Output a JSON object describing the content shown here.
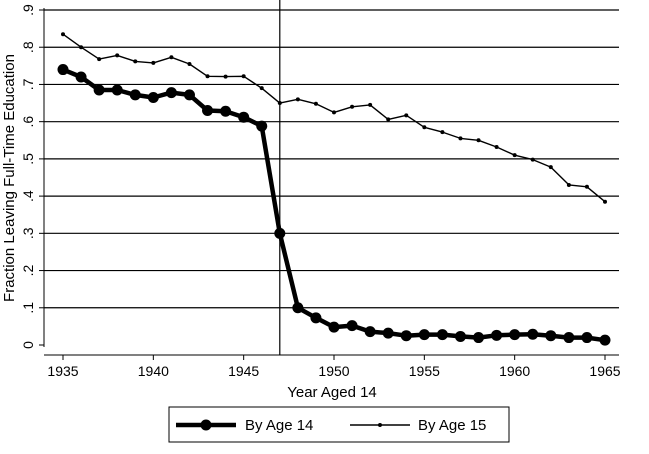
{
  "chart_data": {
    "type": "line",
    "title": "",
    "xlabel": "Year Aged 14",
    "ylabel": "Fraction Leaving Full-Time Education",
    "xlim": [
      1935,
      1965
    ],
    "ylim": [
      0,
      0.9
    ],
    "x_ticks": [
      1935,
      1940,
      1945,
      1950,
      1955,
      1960,
      1965
    ],
    "x_tick_labels": [
      "1935",
      "1940",
      "1945",
      "1950",
      "1955",
      "1960",
      "1965"
    ],
    "y_ticks": [
      0,
      0.1,
      0.2,
      0.3,
      0.4,
      0.5,
      0.6,
      0.7,
      0.8,
      0.9
    ],
    "y_tick_labels": [
      "0",
      ".1",
      ".2",
      ".3",
      ".4",
      ".5",
      ".6",
      ".7",
      ".8",
      ".9"
    ],
    "grid": "horizontal",
    "reference_line_x": 1947,
    "legend_position": "bottom",
    "x": [
      1935,
      1936,
      1937,
      1938,
      1939,
      1940,
      1941,
      1942,
      1943,
      1944,
      1945,
      1946,
      1947,
      1948,
      1949,
      1950,
      1951,
      1952,
      1953,
      1954,
      1955,
      1956,
      1957,
      1958,
      1959,
      1960,
      1961,
      1962,
      1963,
      1964,
      1965
    ],
    "series": [
      {
        "name": "By Age 14",
        "color": "#000000",
        "values": [
          0.74,
          0.72,
          0.685,
          0.685,
          0.672,
          0.665,
          0.678,
          0.672,
          0.63,
          0.628,
          0.612,
          0.588,
          0.3,
          0.1,
          0.073,
          0.048,
          0.052,
          0.036,
          0.032,
          0.025,
          0.028,
          0.028,
          0.023,
          0.02,
          0.026,
          0.028,
          0.029,
          0.025,
          0.02,
          0.02,
          0.013
        ]
      },
      {
        "name": "By Age 15",
        "color": "#000000",
        "values": [
          0.835,
          0.8,
          0.768,
          0.778,
          0.762,
          0.758,
          0.773,
          0.755,
          0.722,
          0.721,
          0.722,
          0.69,
          0.65,
          0.66,
          0.648,
          0.625,
          0.64,
          0.645,
          0.606,
          0.617,
          0.585,
          0.572,
          0.555,
          0.55,
          0.532,
          0.51,
          0.498,
          0.478,
          0.43,
          0.425,
          0.385
        ]
      }
    ]
  }
}
